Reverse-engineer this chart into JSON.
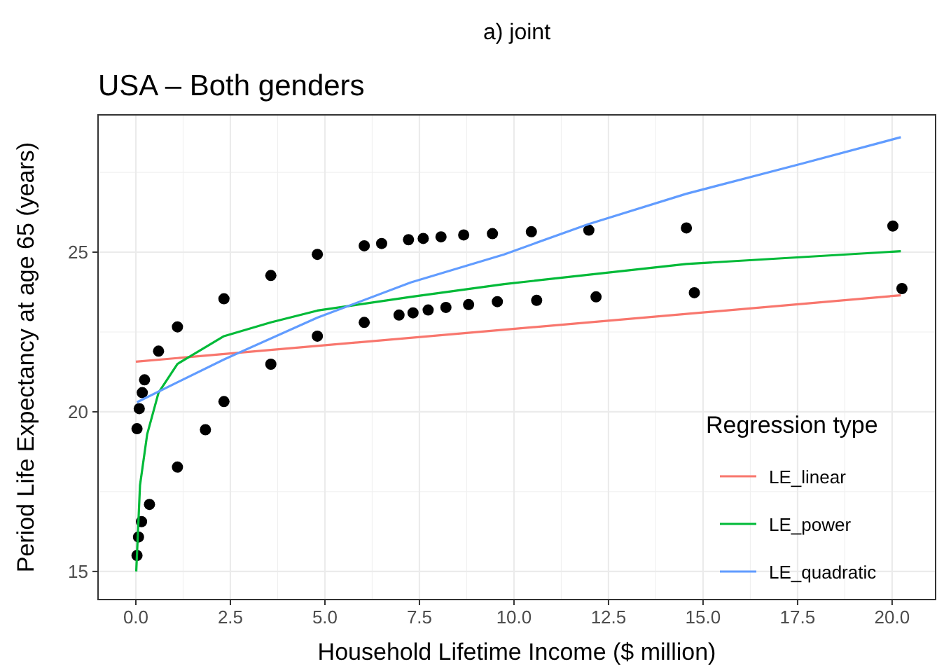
{
  "chart_data": {
    "type": "scatter",
    "title": "a) joint",
    "subtitle": "USA – Both genders",
    "xlabel": "Household Lifetime Income ($ million)",
    "ylabel": "Period Life Expectancy at age 65 (years)",
    "legend_title": "Regression type",
    "legend": "bottom right",
    "grid": true,
    "xlim": [
      -1.0,
      21.15
    ],
    "ylim": [
      14.12,
      29.3
    ],
    "xticks": [
      {
        "value": 0,
        "label": "0.0"
      },
      {
        "value": 2.5,
        "label": "2.5"
      },
      {
        "value": 5,
        "label": "5.0"
      },
      {
        "value": 7.5,
        "label": "7.5"
      },
      {
        "value": 10,
        "label": "10.0"
      },
      {
        "value": 12.5,
        "label": "12.5"
      },
      {
        "value": 15,
        "label": "15.0"
      },
      {
        "value": 17.5,
        "label": "17.5"
      },
      {
        "value": 20,
        "label": "20.0"
      }
    ],
    "yticks": [
      15,
      20,
      25
    ],
    "series": [
      {
        "marker": "circle",
        "color": "#000000",
        "x": [
          0.03,
          0.09,
          0.17,
          0.23,
          0.6,
          1.1,
          2.33,
          3.57,
          4.8,
          6.04,
          6.5,
          7.21,
          7.6,
          8.07,
          8.67,
          9.43,
          10.46,
          11.98,
          14.56,
          20.02
        ],
        "values": [
          19.47,
          20.1,
          20.6,
          21.0,
          21.9,
          22.66,
          23.54,
          24.27,
          24.93,
          25.2,
          25.27,
          25.39,
          25.43,
          25.48,
          25.54,
          25.58,
          25.64,
          25.69,
          25.76,
          25.82
        ]
      },
      {
        "marker": "circle",
        "color": "#000000",
        "x": [
          0.03,
          0.07,
          0.15,
          0.36,
          1.1,
          1.84,
          2.33,
          3.57,
          4.8,
          6.04,
          6.96,
          7.33,
          7.73,
          8.2,
          8.8,
          9.56,
          10.6,
          12.17,
          14.77,
          20.26
        ],
        "values": [
          15.5,
          16.08,
          16.56,
          17.1,
          18.27,
          19.44,
          20.32,
          21.49,
          22.37,
          22.8,
          23.03,
          23.1,
          23.19,
          23.27,
          23.36,
          23.45,
          23.49,
          23.6,
          23.73,
          23.86
        ]
      },
      {
        "type": "line",
        "name": "LE_linear",
        "color": "#f8766d",
        "x": [
          0,
          20.23
        ],
        "values": [
          21.57,
          23.65
        ]
      },
      {
        "type": "line",
        "name": "LE_power",
        "color": "#00ba38",
        "x": [
          0.01,
          0.11,
          0.3,
          0.6,
          1.1,
          2.33,
          3.57,
          4.8,
          7.27,
          9.74,
          14.56,
          20.23
        ],
        "values": [
          15.0,
          17.7,
          19.3,
          20.6,
          21.5,
          22.37,
          22.8,
          23.17,
          23.6,
          24.0,
          24.63,
          25.03
        ]
      },
      {
        "type": "line",
        "name": "LE_quadratic",
        "color": "#619cff",
        "x": [
          0.03,
          2.33,
          4.8,
          7.27,
          9.74,
          11.97,
          14.56,
          17.64,
          20.23
        ],
        "values": [
          20.3,
          21.64,
          22.95,
          24.05,
          24.93,
          25.88,
          26.83,
          27.78,
          28.6
        ]
      }
    ]
  }
}
